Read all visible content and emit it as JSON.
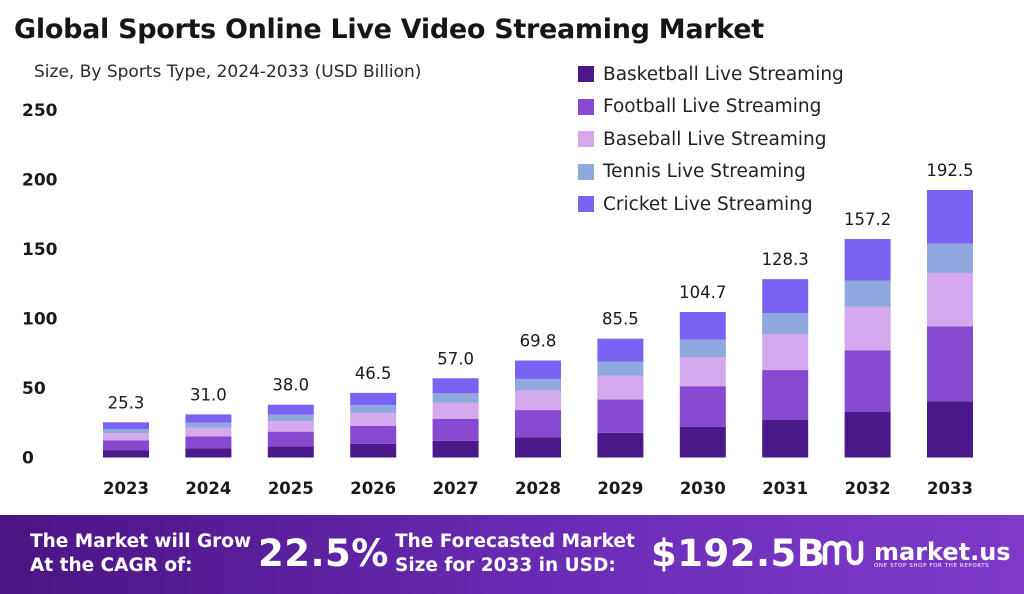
{
  "chart_data": {
    "type": "bar",
    "stacked": true,
    "title": "Global Sports Online Live Video Streaming Market",
    "subtitle": "Size, By Sports Type, 2024-2033 (USD Billion)",
    "xlabel": "",
    "ylabel": "",
    "ylim": [
      0,
      250
    ],
    "yticks": [
      0,
      50,
      100,
      150,
      200,
      250
    ],
    "grid": false,
    "legend_position": "top-right",
    "categories": [
      "2023",
      "2024",
      "2025",
      "2026",
      "2027",
      "2028",
      "2029",
      "2030",
      "2031",
      "2032",
      "2033"
    ],
    "series": [
      {
        "name": "Basketball Live Streaming",
        "color": "#4a1a8a",
        "values": [
          5.3,
          6.5,
          8.0,
          9.8,
          12.0,
          14.6,
          17.8,
          22.0,
          27.0,
          33.0,
          40.4
        ]
      },
      {
        "name": "Football Live Streaming",
        "color": "#8749d0",
        "values": [
          7.1,
          8.7,
          10.6,
          13.0,
          15.9,
          19.5,
          23.9,
          29.3,
          35.9,
          44.0,
          53.9
        ]
      },
      {
        "name": "Baseball Live Streaming",
        "color": "#d3a8ec",
        "values": [
          5.1,
          6.2,
          7.6,
          9.3,
          11.4,
          14.0,
          17.2,
          21.0,
          25.7,
          31.4,
          38.5
        ]
      },
      {
        "name": "Tennis Live Streaming",
        "color": "#8fa8de",
        "values": [
          3.0,
          3.7,
          4.6,
          5.6,
          6.9,
          8.4,
          10.1,
          12.4,
          15.2,
          18.8,
          21.1
        ]
      },
      {
        "name": "Cricket Live Streaming",
        "color": "#7a63f2",
        "values": [
          4.8,
          5.9,
          7.2,
          8.8,
          10.8,
          13.3,
          16.5,
          20.0,
          24.5,
          30.0,
          38.6
        ]
      }
    ],
    "totals": [
      "25.3",
      "31.0",
      "38.0",
      "46.5",
      "57.0",
      "69.8",
      "85.5",
      "104.7",
      "128.3",
      "157.2",
      "192.5"
    ]
  },
  "banner": {
    "cagr_text": [
      "The Market will Grow",
      "At the CAGR of:"
    ],
    "cagr_value": "22.5%",
    "forecast_text": [
      "The Forecasted Market",
      "Size for 2033 in USD:"
    ],
    "forecast_value": "$192.5B",
    "logo_name": "market.us",
    "logo_tagline": "ONE STOP SHOP FOR THE REPORTS"
  }
}
